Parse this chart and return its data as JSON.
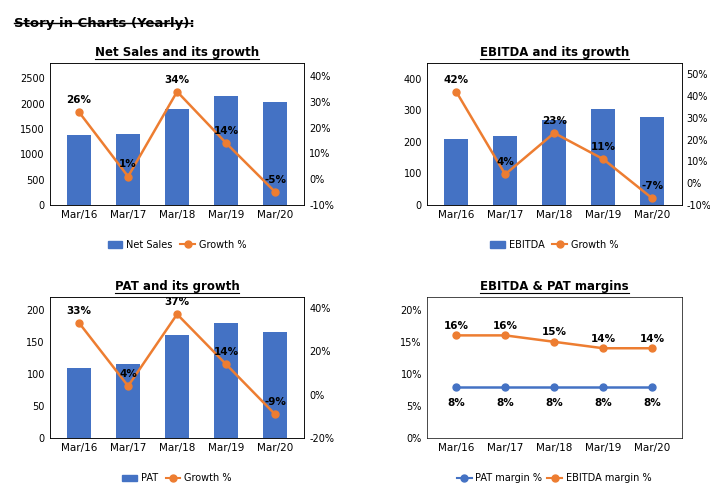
{
  "title_main": "Story in Charts (Yearly):",
  "categories": [
    "Mar/16",
    "Mar/17",
    "Mar/18",
    "Mar/19",
    "Mar/20"
  ],
  "net_sales": {
    "title": "Net Sales and its growth",
    "bars": [
      1380,
      1410,
      1900,
      2150,
      2030
    ],
    "growth": [
      26,
      1,
      34,
      14,
      -5
    ],
    "bar_color": "#4472C4",
    "line_color": "#ED7D31",
    "bar_label": "Net Sales",
    "line_label": "Growth %",
    "ylim_left": [
      0,
      2800
    ],
    "ylim_right": [
      -10,
      45
    ],
    "yticks_left": [
      0,
      500,
      1000,
      1500,
      2000,
      2500
    ],
    "yticks_right": [
      -10,
      0,
      10,
      20,
      30,
      40
    ]
  },
  "ebitda": {
    "title": "EBITDA and its growth",
    "bars": [
      210,
      220,
      270,
      305,
      280
    ],
    "growth": [
      42,
      4,
      23,
      11,
      -7
    ],
    "bar_color": "#4472C4",
    "line_color": "#ED7D31",
    "bar_label": "EBITDA",
    "line_label": "Growth %",
    "ylim_left": [
      0,
      450
    ],
    "ylim_right": [
      -10,
      55
    ],
    "yticks_left": [
      0,
      100,
      200,
      300,
      400
    ],
    "yticks_right": [
      -10,
      0,
      10,
      20,
      30,
      40,
      50
    ]
  },
  "pat": {
    "title": "PAT and its growth",
    "bars": [
      110,
      115,
      160,
      180,
      165
    ],
    "growth": [
      33,
      4,
      37,
      14,
      -9
    ],
    "bar_color": "#4472C4",
    "line_color": "#ED7D31",
    "bar_label": "PAT",
    "line_label": "Growth %",
    "ylim_left": [
      0,
      220
    ],
    "ylim_right": [
      -20,
      45
    ],
    "yticks_left": [
      0,
      50,
      100,
      150,
      200
    ],
    "yticks_right": [
      -20,
      0,
      20,
      40
    ]
  },
  "margins": {
    "title": "EBITDA & PAT margins",
    "pat_margin": [
      8,
      8,
      8,
      8,
      8
    ],
    "ebitda_margin": [
      16,
      16,
      15,
      14,
      14
    ],
    "pat_color": "#4472C4",
    "ebitda_color": "#ED7D31",
    "pat_label": "PAT margin %",
    "ebitda_label": "EBITDA margin %",
    "ylim": [
      0,
      22
    ],
    "yticks": [
      0,
      5,
      10,
      15,
      20
    ],
    "yticklabels": [
      "0%",
      "5%",
      "10%",
      "15%",
      "20%"
    ]
  }
}
